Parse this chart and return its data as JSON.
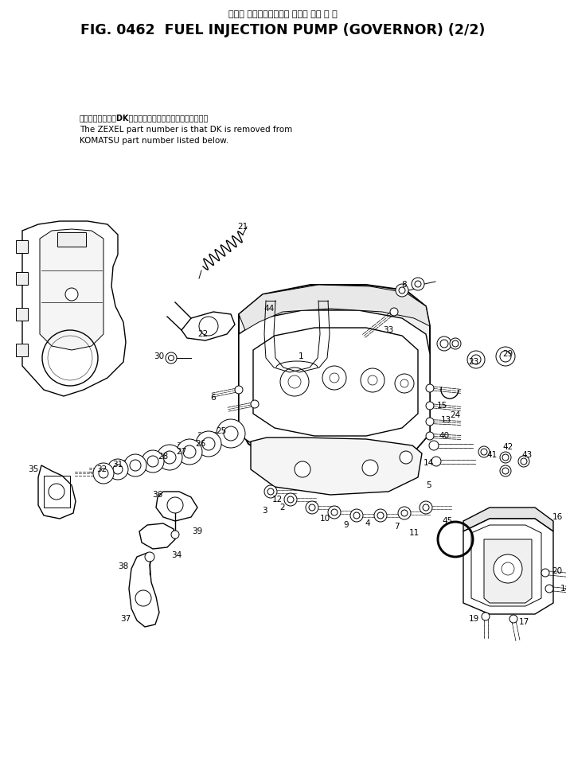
{
  "title_japanese": "フェル インジェクション ポンプ ・ガ バ ナ",
  "title_english": "FIG. 0462  FUEL INJECTION PUMP (GOVERNOR) (2/2)",
  "note_japanese": "品番のメーカ記号DKを除いたものがゼクセルの品番です。",
  "note_line2": "The ZEXEL part number is that DK is removed from",
  "note_line3": "KOMATSU part number listed below.",
  "bg_color": "#ffffff",
  "text_color": "#000000",
  "fig_width": 7.11,
  "fig_height": 9.73,
  "dpi": 100
}
